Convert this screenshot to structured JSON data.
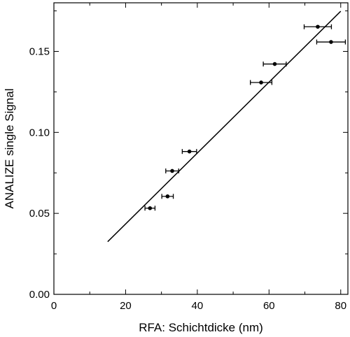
{
  "chart_data": {
    "type": "scatter",
    "title": "",
    "xlabel": "RFA: Schichtdicke (nm)",
    "ylabel": "ANALIZE single Signal",
    "xlim": [
      0,
      82
    ],
    "ylim": [
      0,
      0.18
    ],
    "x_ticks": [
      {
        "value": 0,
        "label": "0"
      },
      {
        "value": 20,
        "label": "20"
      },
      {
        "value": 40,
        "label": "40"
      },
      {
        "value": 60,
        "label": "60"
      },
      {
        "value": 80,
        "label": "80"
      }
    ],
    "y_ticks": [
      {
        "value": 0,
        "label": "0.00"
      },
      {
        "value": 0.05,
        "label": "0.05"
      },
      {
        "value": 0.1,
        "label": "0.10"
      },
      {
        "value": 0.15,
        "label": "0.15"
      }
    ],
    "grid": false,
    "legend": "none",
    "colors": {
      "marker": "#000000",
      "line": "#000000",
      "axis": "#000000"
    },
    "points": [
      {
        "x": 26.8,
        "y": 0.0532,
        "xerr": 1.4
      },
      {
        "x": 31.7,
        "y": 0.0605,
        "xerr": 1.6
      },
      {
        "x": 33.0,
        "y": 0.0762,
        "xerr": 1.8
      },
      {
        "x": 37.8,
        "y": 0.0882,
        "xerr": 2.0
      },
      {
        "x": 57.8,
        "y": 0.1308,
        "xerr": 3.0
      },
      {
        "x": 61.6,
        "y": 0.1422,
        "xerr": 3.2
      },
      {
        "x": 73.6,
        "y": 0.1652,
        "xerr": 3.8
      },
      {
        "x": 77.3,
        "y": 0.1558,
        "xerr": 4.0
      }
    ],
    "fit_line": {
      "x": [
        15.0,
        80.0
      ],
      "y": [
        0.0325,
        0.1748
      ]
    }
  }
}
